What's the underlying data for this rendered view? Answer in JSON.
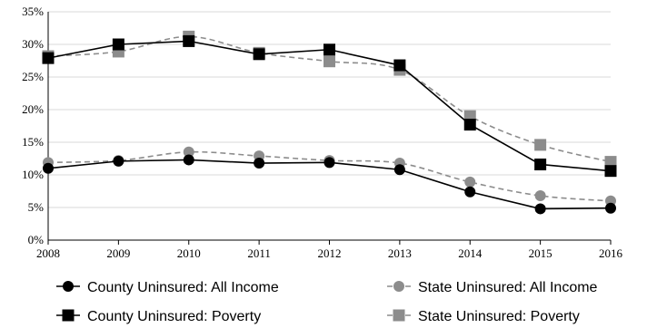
{
  "chart_data": {
    "type": "line",
    "title": "",
    "xlabel": "",
    "ylabel": "",
    "x": [
      "2008",
      "2009",
      "2010",
      "2011",
      "2012",
      "2013",
      "2014",
      "2015",
      "2016"
    ],
    "ylim": [
      0,
      35
    ],
    "yticks": [
      "0%",
      "5%",
      "10%",
      "15%",
      "20%",
      "25%",
      "30%",
      "35%"
    ],
    "grid": "horizontal",
    "legend_position": "bottom",
    "series": [
      {
        "name": "County Uninsured: All Income",
        "values": [
          11.0,
          12.1,
          12.3,
          11.8,
          11.9,
          10.8,
          7.4,
          4.8,
          4.9
        ],
        "color": "#000000",
        "marker": "circle",
        "dashed": false
      },
      {
        "name": "State Uninsured: All Income",
        "values": [
          11.9,
          12.2,
          13.5,
          12.9,
          12.2,
          11.8,
          8.9,
          6.8,
          6.0
        ],
        "color": "#8c8c8c",
        "marker": "circle",
        "dashed": true
      },
      {
        "name": "County Uninsured: Poverty",
        "values": [
          27.9,
          30.0,
          30.5,
          28.5,
          29.2,
          26.8,
          17.7,
          11.6,
          10.6
        ],
        "color": "#000000",
        "marker": "square",
        "dashed": false
      },
      {
        "name": "State Uninsured: Poverty",
        "values": [
          28.2,
          28.9,
          31.2,
          28.7,
          27.4,
          26.1,
          19.0,
          14.6,
          12.0
        ],
        "color": "#8c8c8c",
        "marker": "square",
        "dashed": true
      }
    ]
  }
}
